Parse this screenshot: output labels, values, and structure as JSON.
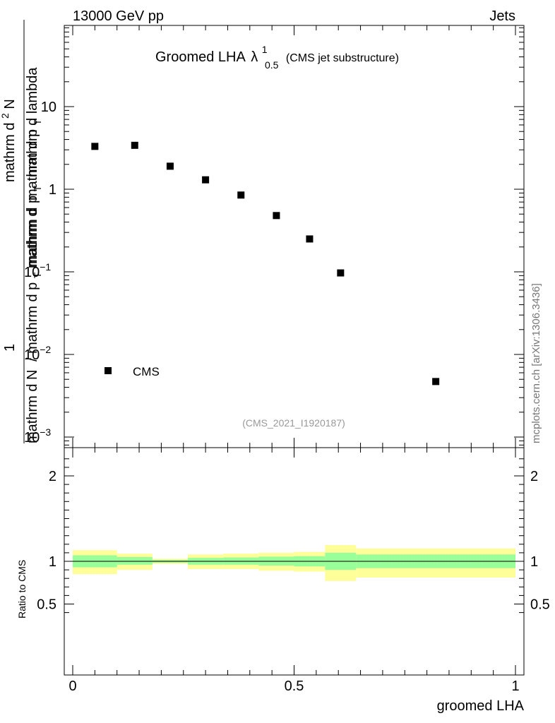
{
  "header": {
    "left": "13000 GeV pp",
    "right": "Jets"
  },
  "plot_title": {
    "main": "Groomed LHA",
    "lambda_symbol": "λ",
    "lambda_sup": "1",
    "lambda_sub": "0.5",
    "sub": "(CMS jet substructure)"
  },
  "y_label_main": {
    "numerator": "1",
    "denominator_prefix": "mathrm d N",
    "denominator_suffix": "/ mathrm d p",
    "denominator_sub": "T",
    "second_line": "mathrm d",
    "second_line_sup": "2",
    "second_line_rest": "N",
    "second_line_b": "mathrm d p",
    "second_line_b_sub": "T",
    "second_line_c": "mathrm d p",
    "second_line_c_sub": "T",
    "second_line_d": "mathrm d lambda"
  },
  "y_label_ratio": "Ratio to CMS",
  "x_label": "groomed LHA",
  "legend": {
    "label": "CMS"
  },
  "analysis_id": "(CMS_2021_I1920187)",
  "side_label": "mcplots.cern.ch [arXiv:1306.3436]",
  "colors": {
    "marker": "#000000",
    "band_inner": "#99ff99",
    "band_outer": "#ffff99",
    "ref_text": "#999999"
  },
  "chart_data": [
    {
      "type": "scatter",
      "panel": "main",
      "yscale": "log",
      "xlim": [
        0,
        1
      ],
      "ylim": [
        0.0008,
        100
      ],
      "y_ticks": [
        {
          "value": 10,
          "label": "10"
        },
        {
          "value": 1,
          "label": "1"
        },
        {
          "value": 0.1,
          "label": "10",
          "sup": "−1"
        },
        {
          "value": 0.01,
          "label": "10",
          "sup": "−2"
        },
        {
          "value": 0.001,
          "label": "10",
          "sup": "−3"
        }
      ],
      "series": [
        {
          "name": "CMS",
          "marker": "square",
          "x": [
            0.05,
            0.14,
            0.22,
            0.3,
            0.38,
            0.46,
            0.535,
            0.605,
            0.82
          ],
          "y": [
            3.3,
            3.4,
            1.9,
            1.3,
            0.85,
            0.48,
            0.25,
            0.097,
            0.0047
          ]
        }
      ]
    },
    {
      "type": "area",
      "panel": "ratio",
      "ylim": [
        0.35,
        2.35
      ],
      "xlim": [
        0,
        1
      ],
      "x_ticks": [
        {
          "value": 0,
          "label": "0"
        },
        {
          "value": 0.5,
          "label": "0.5"
        },
        {
          "value": 1,
          "label": "1"
        }
      ],
      "y_ticks": [
        {
          "value": 2,
          "label": "2"
        },
        {
          "value": 1,
          "label": "1"
        },
        {
          "value": 0.5,
          "label": "0.5"
        }
      ],
      "reference_line": 1,
      "bins": [
        {
          "x0": 0.0,
          "x1": 0.1,
          "inner": [
            0.93,
            1.07
          ],
          "outer": [
            0.85,
            1.13
          ]
        },
        {
          "x0": 0.1,
          "x1": 0.18,
          "inner": [
            0.96,
            1.05
          ],
          "outer": [
            0.9,
            1.09
          ]
        },
        {
          "x0": 0.18,
          "x1": 0.26,
          "inner": [
            0.985,
            1.015
          ],
          "outer": [
            0.97,
            1.03
          ]
        },
        {
          "x0": 0.26,
          "x1": 0.34,
          "inner": [
            0.96,
            1.04
          ],
          "outer": [
            0.91,
            1.08
          ]
        },
        {
          "x0": 0.34,
          "x1": 0.42,
          "inner": [
            0.96,
            1.045
          ],
          "outer": [
            0.91,
            1.09
          ]
        },
        {
          "x0": 0.42,
          "x1": 0.5,
          "inner": [
            0.95,
            1.055
          ],
          "outer": [
            0.89,
            1.1
          ]
        },
        {
          "x0": 0.5,
          "x1": 0.57,
          "inner": [
            0.94,
            1.06
          ],
          "outer": [
            0.88,
            1.11
          ]
        },
        {
          "x0": 0.57,
          "x1": 0.64,
          "inner": [
            0.9,
            1.1
          ],
          "outer": [
            0.77,
            1.19
          ]
        },
        {
          "x0": 0.64,
          "x1": 1.0,
          "inner": [
            0.92,
            1.08
          ],
          "outer": [
            0.81,
            1.15
          ]
        }
      ]
    }
  ]
}
